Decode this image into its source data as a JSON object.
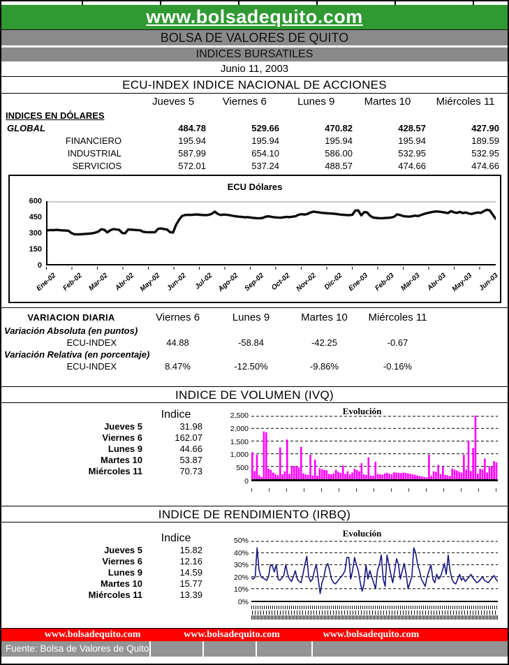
{
  "colors": {
    "green": "#2e9a31",
    "gray_band": "#8a8a8a",
    "red": "#fe0000",
    "magenta": "#ff00ff",
    "navy": "#16167d",
    "source_gray": "#949494"
  },
  "header": {
    "site": "www.bolsadequito.com",
    "org": "BOLSA DE VALORES DE QUITO",
    "section": "INDICES BURSATILES",
    "date": "Junio 11, 2003",
    "title": "ECU-INDEX  INDICE NACIONAL DE ACCIONES"
  },
  "indices_table": {
    "columns": [
      "Jueves 5",
      "Viernes 6",
      "Lunes 9",
      "Martes 10",
      "Miércoles 11"
    ],
    "group_label": "INDICES EN DÓLARES",
    "rows": [
      {
        "label": "GLOBAL",
        "values": [
          "484.78",
          "529.66",
          "470.82",
          "428.57",
          "427.90"
        ]
      },
      {
        "label": "FINANCIERO",
        "values": [
          "195.94",
          "195.94",
          "195.94",
          "195.94",
          "189.59"
        ]
      },
      {
        "label": "INDUSTRIAL",
        "values": [
          "587.99",
          "654.10",
          "586.00",
          "532.95",
          "532.95"
        ]
      },
      {
        "label": "SERVICIOS",
        "values": [
          "572.01",
          "537.24",
          "488.57",
          "474.66",
          "474.66"
        ]
      }
    ]
  },
  "variation": {
    "title": "VARIACION DIARIA",
    "columns": [
      "Viernes 6",
      "Lunes 9",
      "Martes 10",
      "Miércoles 11"
    ],
    "absolute_label": "Variación Absoluta (en puntos)",
    "relative_label": "Variación Relativa (en porcentaje)",
    "row_label": "ECU-INDEX",
    "absolute": [
      "44.88",
      "-58.84",
      "-42.25",
      "-0.67"
    ],
    "relative": [
      "8.47%",
      "-12.50%",
      "-9.86%",
      "-0.16%"
    ]
  },
  "ivq": {
    "title": "INDICE DE VOLUMEN (IVQ)",
    "col_header": "Indice",
    "rows": [
      [
        "Jueves 5",
        "31.98"
      ],
      [
        "Viernes 6",
        "162.07"
      ],
      [
        "Lunes 9",
        "44.66"
      ],
      [
        "Martes 10",
        "53.87"
      ],
      [
        "Miércoles 11",
        "70.73"
      ]
    ]
  },
  "irbq": {
    "title": "INDICE DE RENDIMIENTO (IRBQ)",
    "col_header": "Indice",
    "rows": [
      [
        "Jueves 5",
        "15.82"
      ],
      [
        "Viernes 6",
        "12.16"
      ],
      [
        "Lunes 9",
        "14.59"
      ],
      [
        "Martes 10",
        "15.77"
      ],
      [
        "Miércoles 11",
        "13.39"
      ]
    ]
  },
  "footer": {
    "links": [
      "www.bolsadequito.com",
      "www.bolsadequito.com",
      "www.bolsadequito.com"
    ],
    "source": "Fuente: Bolsa de Valores de Quito"
  },
  "chart_data": [
    {
      "type": "line",
      "title": "ECU Dólares",
      "ylabel": "",
      "xlabel": "",
      "ylim": [
        0,
        600
      ],
      "yticks": [
        "600",
        "450",
        "300",
        "150",
        "0"
      ],
      "gridlines": [
        600
      ],
      "grid_color": "#999999",
      "grid_dash": "",
      "color": "#0a0a0a",
      "stroke_width": 3.4,
      "x_labels": [
        "Ene-02",
        "Feb-02",
        "Mar-02",
        "Abr-02",
        "May-02",
        "Jun-02",
        "Jul-02",
        "Ago-02",
        "Sep-02",
        "Oct-02",
        "Nov-02",
        "Dic-02",
        "Ene-03",
        "Feb-03",
        "Mar-03",
        "Abr-03",
        "May-03",
        "Jun-03"
      ],
      "values": [
        322,
        325,
        323,
        326,
        324,
        321,
        320,
        318,
        296,
        285,
        283,
        284,
        286,
        288,
        290,
        293,
        300,
        310,
        332,
        327,
        302,
        322,
        334,
        330,
        326,
        297,
        294,
        330,
        328,
        326,
        324,
        322,
        308,
        305,
        304,
        303,
        305,
        336,
        340,
        334,
        330,
        305,
        300,
        372,
        420,
        458,
        468,
        470,
        469,
        471,
        473,
        470,
        468,
        466,
        470,
        480,
        500,
        478,
        468,
        472,
        470,
        466,
        460,
        456,
        452,
        450,
        446,
        448,
        444,
        440,
        438,
        437,
        440,
        452,
        456,
        450,
        446,
        444,
        442,
        446,
        450,
        448,
        452,
        456,
        470,
        476,
        472,
        478,
        492,
        500,
        496,
        492,
        488,
        486,
        484,
        482,
        480,
        476,
        472,
        470,
        468,
        466,
        470,
        510,
        512,
        465,
        496,
        492,
        460,
        444,
        440,
        438,
        437,
        439,
        441,
        444,
        452,
        474,
        468,
        458,
        455,
        452,
        456,
        462,
        458,
        468,
        478,
        486,
        492,
        498,
        502,
        500,
        496,
        492,
        486,
        505,
        494,
        488,
        498,
        486,
        492,
        482,
        478,
        486,
        492,
        488,
        505,
        518,
        512,
        472,
        432
      ]
    },
    {
      "type": "bar",
      "title": "Evolución",
      "ylabel": "",
      "xlabel": "",
      "ylim": [
        0,
        2500
      ],
      "yticks": [
        "2,500",
        "2,000",
        "1,500",
        "1,000",
        "500",
        "0"
      ],
      "gridlines": [
        500,
        1000,
        1500,
        2000,
        2500
      ],
      "grid_color": "#000000",
      "grid_dash": "4 3",
      "color": "#ff00ff",
      "values": [
        1060,
        320,
        960,
        150,
        90,
        1880,
        1840,
        420,
        360,
        260,
        200,
        160,
        1250,
        190,
        310,
        1560,
        210,
        500,
        520,
        490,
        470,
        1270,
        230,
        190,
        170,
        960,
        150,
        770,
        140,
        430,
        390,
        370,
        350,
        210,
        190,
        230,
        370,
        290,
        250,
        540,
        210,
        310,
        190,
        260,
        410,
        360,
        310,
        630,
        190,
        170,
        860,
        150,
        130,
        690,
        210,
        190,
        170,
        230,
        250,
        210,
        190,
        270,
        260,
        250,
        240,
        260,
        250,
        230,
        210,
        190,
        170,
        150,
        130,
        110,
        90,
        70,
        960,
        130,
        310,
        290,
        560,
        210,
        490,
        170,
        150,
        130,
        420,
        380,
        340,
        300,
        260,
        960,
        380,
        1510,
        320,
        1230,
        2500,
        220,
        410,
        390,
        810,
        260,
        510,
        490,
        710,
        660
      ]
    },
    {
      "type": "line",
      "title": "Evolución",
      "ylabel": "",
      "xlabel": "",
      "ylim": [
        0,
        50
      ],
      "yticks": [
        "50%",
        "40%",
        "30%",
        "20%",
        "10%",
        "0%"
      ],
      "gridlines": [
        10,
        20,
        30,
        40,
        50
      ],
      "grid_color": "#000000",
      "grid_dash": "4 3",
      "color": "#16167d",
      "stroke_width": 1.6,
      "values": [
        19,
        18,
        20,
        44,
        26,
        20,
        19,
        18,
        17,
        20,
        30,
        29,
        24,
        30,
        18,
        17,
        19,
        21,
        30,
        22,
        18,
        16,
        20,
        25,
        18,
        16,
        15,
        22,
        30,
        37,
        20,
        16,
        18,
        25,
        30,
        18,
        6,
        15,
        20,
        28,
        31,
        25,
        18,
        15,
        14,
        16,
        18,
        20,
        22,
        25,
        36,
        36,
        18,
        25,
        36,
        30,
        25,
        15,
        8,
        14,
        30,
        18,
        25,
        20,
        15,
        10,
        25,
        30,
        38,
        18,
        12,
        38,
        30,
        22,
        15,
        25,
        35,
        30,
        18,
        25,
        31,
        22,
        10,
        15,
        20,
        44,
        40,
        30,
        25,
        18,
        15,
        12,
        20,
        25,
        30,
        18,
        15,
        22,
        18,
        20,
        25,
        31,
        22,
        38,
        25,
        18,
        15,
        14,
        18,
        22,
        17,
        19,
        16,
        18,
        20,
        22,
        19,
        17,
        15,
        16,
        18,
        20,
        17,
        16,
        15,
        17,
        19,
        21,
        18,
        16
      ]
    }
  ]
}
